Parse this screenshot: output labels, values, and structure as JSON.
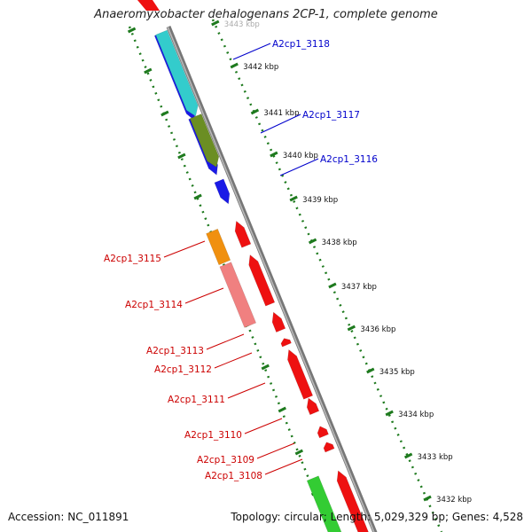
{
  "title": "Anaeromyxobacter dehalogenans 2CP-1, complete genome",
  "footer": {
    "accession": "Accession: NC_011891",
    "summary": "Topology: circular; Length: 5,029,329 bp; Genes: 4,528"
  },
  "colors": {
    "forward_label": "#0000cc",
    "reverse_label": "#cc0000",
    "backbone": "#888888",
    "tick": "#1e7a1e"
  },
  "ticks": [
    {
      "label": "3443 kbp",
      "partial": true
    },
    {
      "label": "3442 kbp"
    },
    {
      "label": "3441 kbp"
    },
    {
      "label": "3440 kbp"
    },
    {
      "label": "3439 kbp"
    },
    {
      "label": "3438 kbp"
    },
    {
      "label": "3437 kbp"
    },
    {
      "label": "3436 kbp"
    },
    {
      "label": "3435 kbp"
    },
    {
      "label": "3434 kbp"
    },
    {
      "label": "3433 kbp"
    },
    {
      "label": "3432 kbp"
    }
  ],
  "forward_genes": [
    {
      "name": "A2cp1_3118",
      "color": "#1a1ae6"
    },
    {
      "name": "A2cp1_3117",
      "color": "#1a1ae6"
    },
    {
      "name": "A2cp1_3116",
      "color": "#1a1ae6"
    }
  ],
  "forward_features": [
    {
      "color": "#33cccc"
    },
    {
      "color": "#6b8e23"
    }
  ],
  "reverse_genes": [
    {
      "name": "A2cp1_3115",
      "color": "#ee1111"
    },
    {
      "name": "A2cp1_3114",
      "color": "#ee1111"
    },
    {
      "name": "A2cp1_3113",
      "color": "#ee1111"
    },
    {
      "name": "A2cp1_3112",
      "color": "#ee1111"
    },
    {
      "name": "A2cp1_3111",
      "color": "#ee1111"
    },
    {
      "name": "A2cp1_3110",
      "color": "#ee1111"
    },
    {
      "name": "A2cp1_3109",
      "color": "#ee1111"
    },
    {
      "name": "A2cp1_3108",
      "color": "#ee1111"
    }
  ],
  "reverse_features": [
    {
      "color": "#f0900f"
    },
    {
      "color": "#f08080"
    },
    {
      "color": "#33cc33"
    }
  ]
}
